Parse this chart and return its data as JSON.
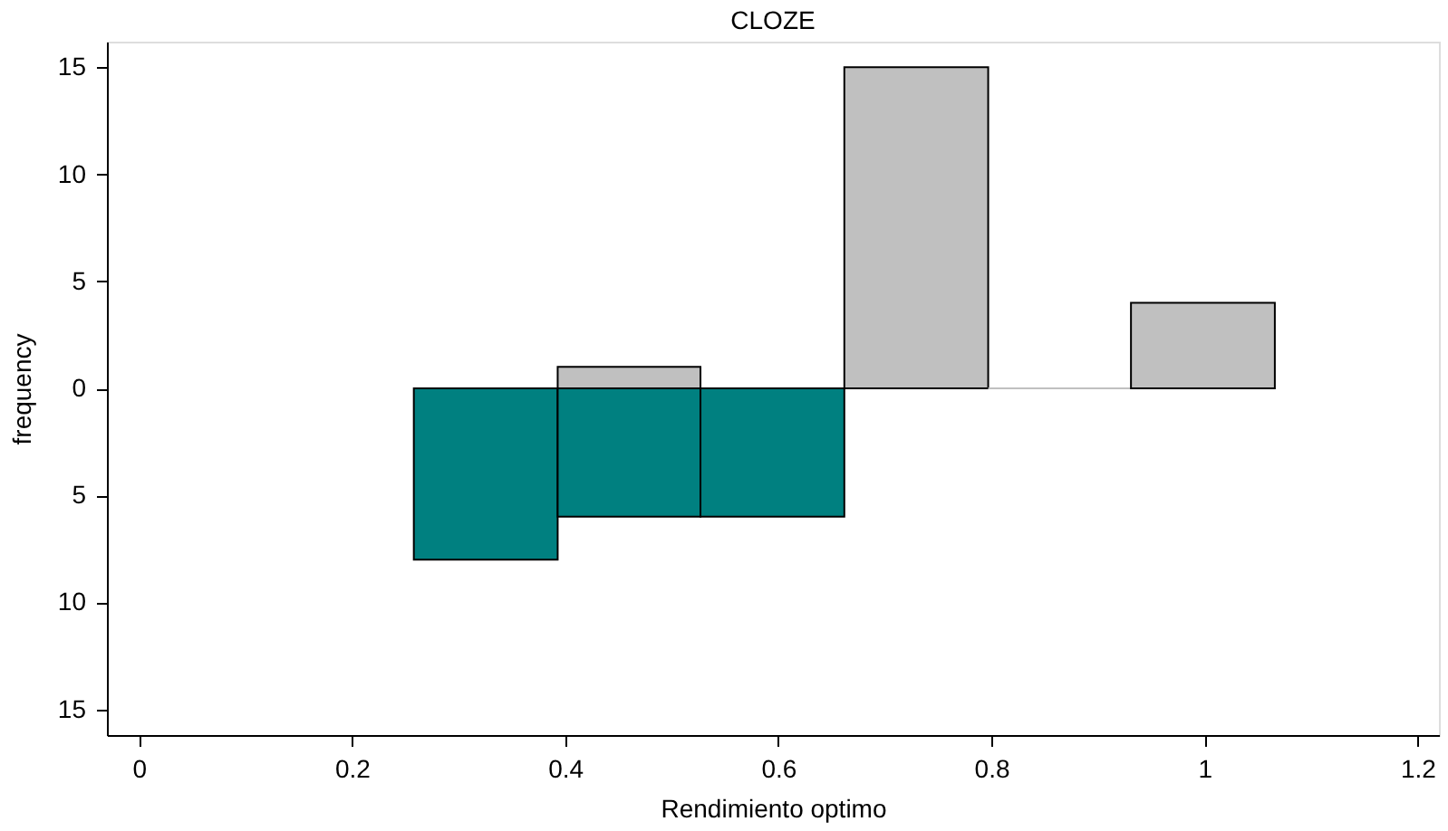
{
  "chart_data": {
    "type": "histogram",
    "title": "CLOZE",
    "xlabel": "Rendimiento optimo",
    "ylabel": "frequency",
    "bins": [
      0.258,
      0.393,
      0.527,
      0.662,
      0.797,
      0.931,
      1.066
    ],
    "series": [
      {
        "color": "#c0c0c0",
        "values": [
          null,
          1,
          null,
          15,
          0,
          4
        ]
      },
      {
        "color": "#008080",
        "values": [
          -8,
          -6,
          -6,
          null,
          null,
          null
        ]
      }
    ],
    "xlim": [
      -0.03,
      1.22
    ],
    "xticks": [
      0,
      0.2,
      0.4,
      0.6,
      0.8,
      1,
      1.2
    ],
    "ylim": [
      -16.2,
      16.2
    ],
    "yticks": [
      {
        "value": -15,
        "label": "15"
      },
      {
        "value": -10,
        "label": "10"
      },
      {
        "value": -5,
        "label": "5"
      },
      0,
      5,
      10,
      15
    ],
    "grid": false,
    "legend": false
  }
}
